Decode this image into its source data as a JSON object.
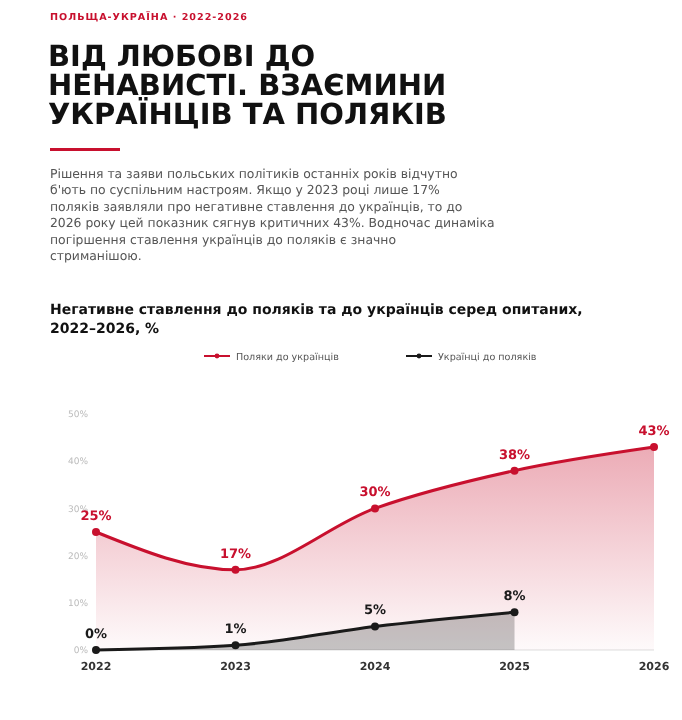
{
  "chart_data": {
    "type": "area",
    "title": "ВІД ЛЮБОВІ ДО НЕНАВИСТІ. ВЗАЄМИНИ УКРАЇНЦІВ ТА ПОЛЯКІВ",
    "subtitle": "Негативне ставлення до поляків та до українців серед опитаних, 2022–2026, %",
    "annotations": [
      "ПОЛЬЩА-УКРАЇНА · 2022-2026",
      "Рішення та заяви польських політиків останніх років відчутно б'ють по суспільним настроям. Якщо у 2023 році лише 17% поляків заявляли про негативне ставлення до українців, то до 2026 року цей показник сягнув критичних 43%. Водночас динаміка погіршення ставлення українців до поляків є значно стриманішою."
    ],
    "categories": [
      "2022",
      "2023",
      "2024",
      "2025",
      "2026"
    ],
    "series": [
      {
        "name": "Поляки до українців",
        "color": "#c8102e",
        "values": [
          25,
          17,
          30,
          38,
          43
        ],
        "value_labels": [
          "25%",
          "17%",
          "30%",
          "38%",
          "43%"
        ]
      },
      {
        "name": "Українці до поляків",
        "color": "#1a1a1a",
        "values": [
          0,
          1,
          5,
          8,
          null
        ],
        "value_labels": [
          "0%",
          "1%",
          "5%",
          "8%",
          null
        ]
      }
    ],
    "ylim": [
      0,
      50
    ],
    "yticks": [
      {
        "value": 0,
        "label": "0%"
      },
      {
        "value": 10,
        "label": "10%"
      },
      {
        "value": 20,
        "label": "20%"
      },
      {
        "value": 30,
        "label": "30%"
      },
      {
        "value": 40,
        "label": "40%"
      },
      {
        "value": 50,
        "label": "50%"
      }
    ],
    "legend": "top",
    "marker": "circle",
    "line_style": "solid"
  }
}
